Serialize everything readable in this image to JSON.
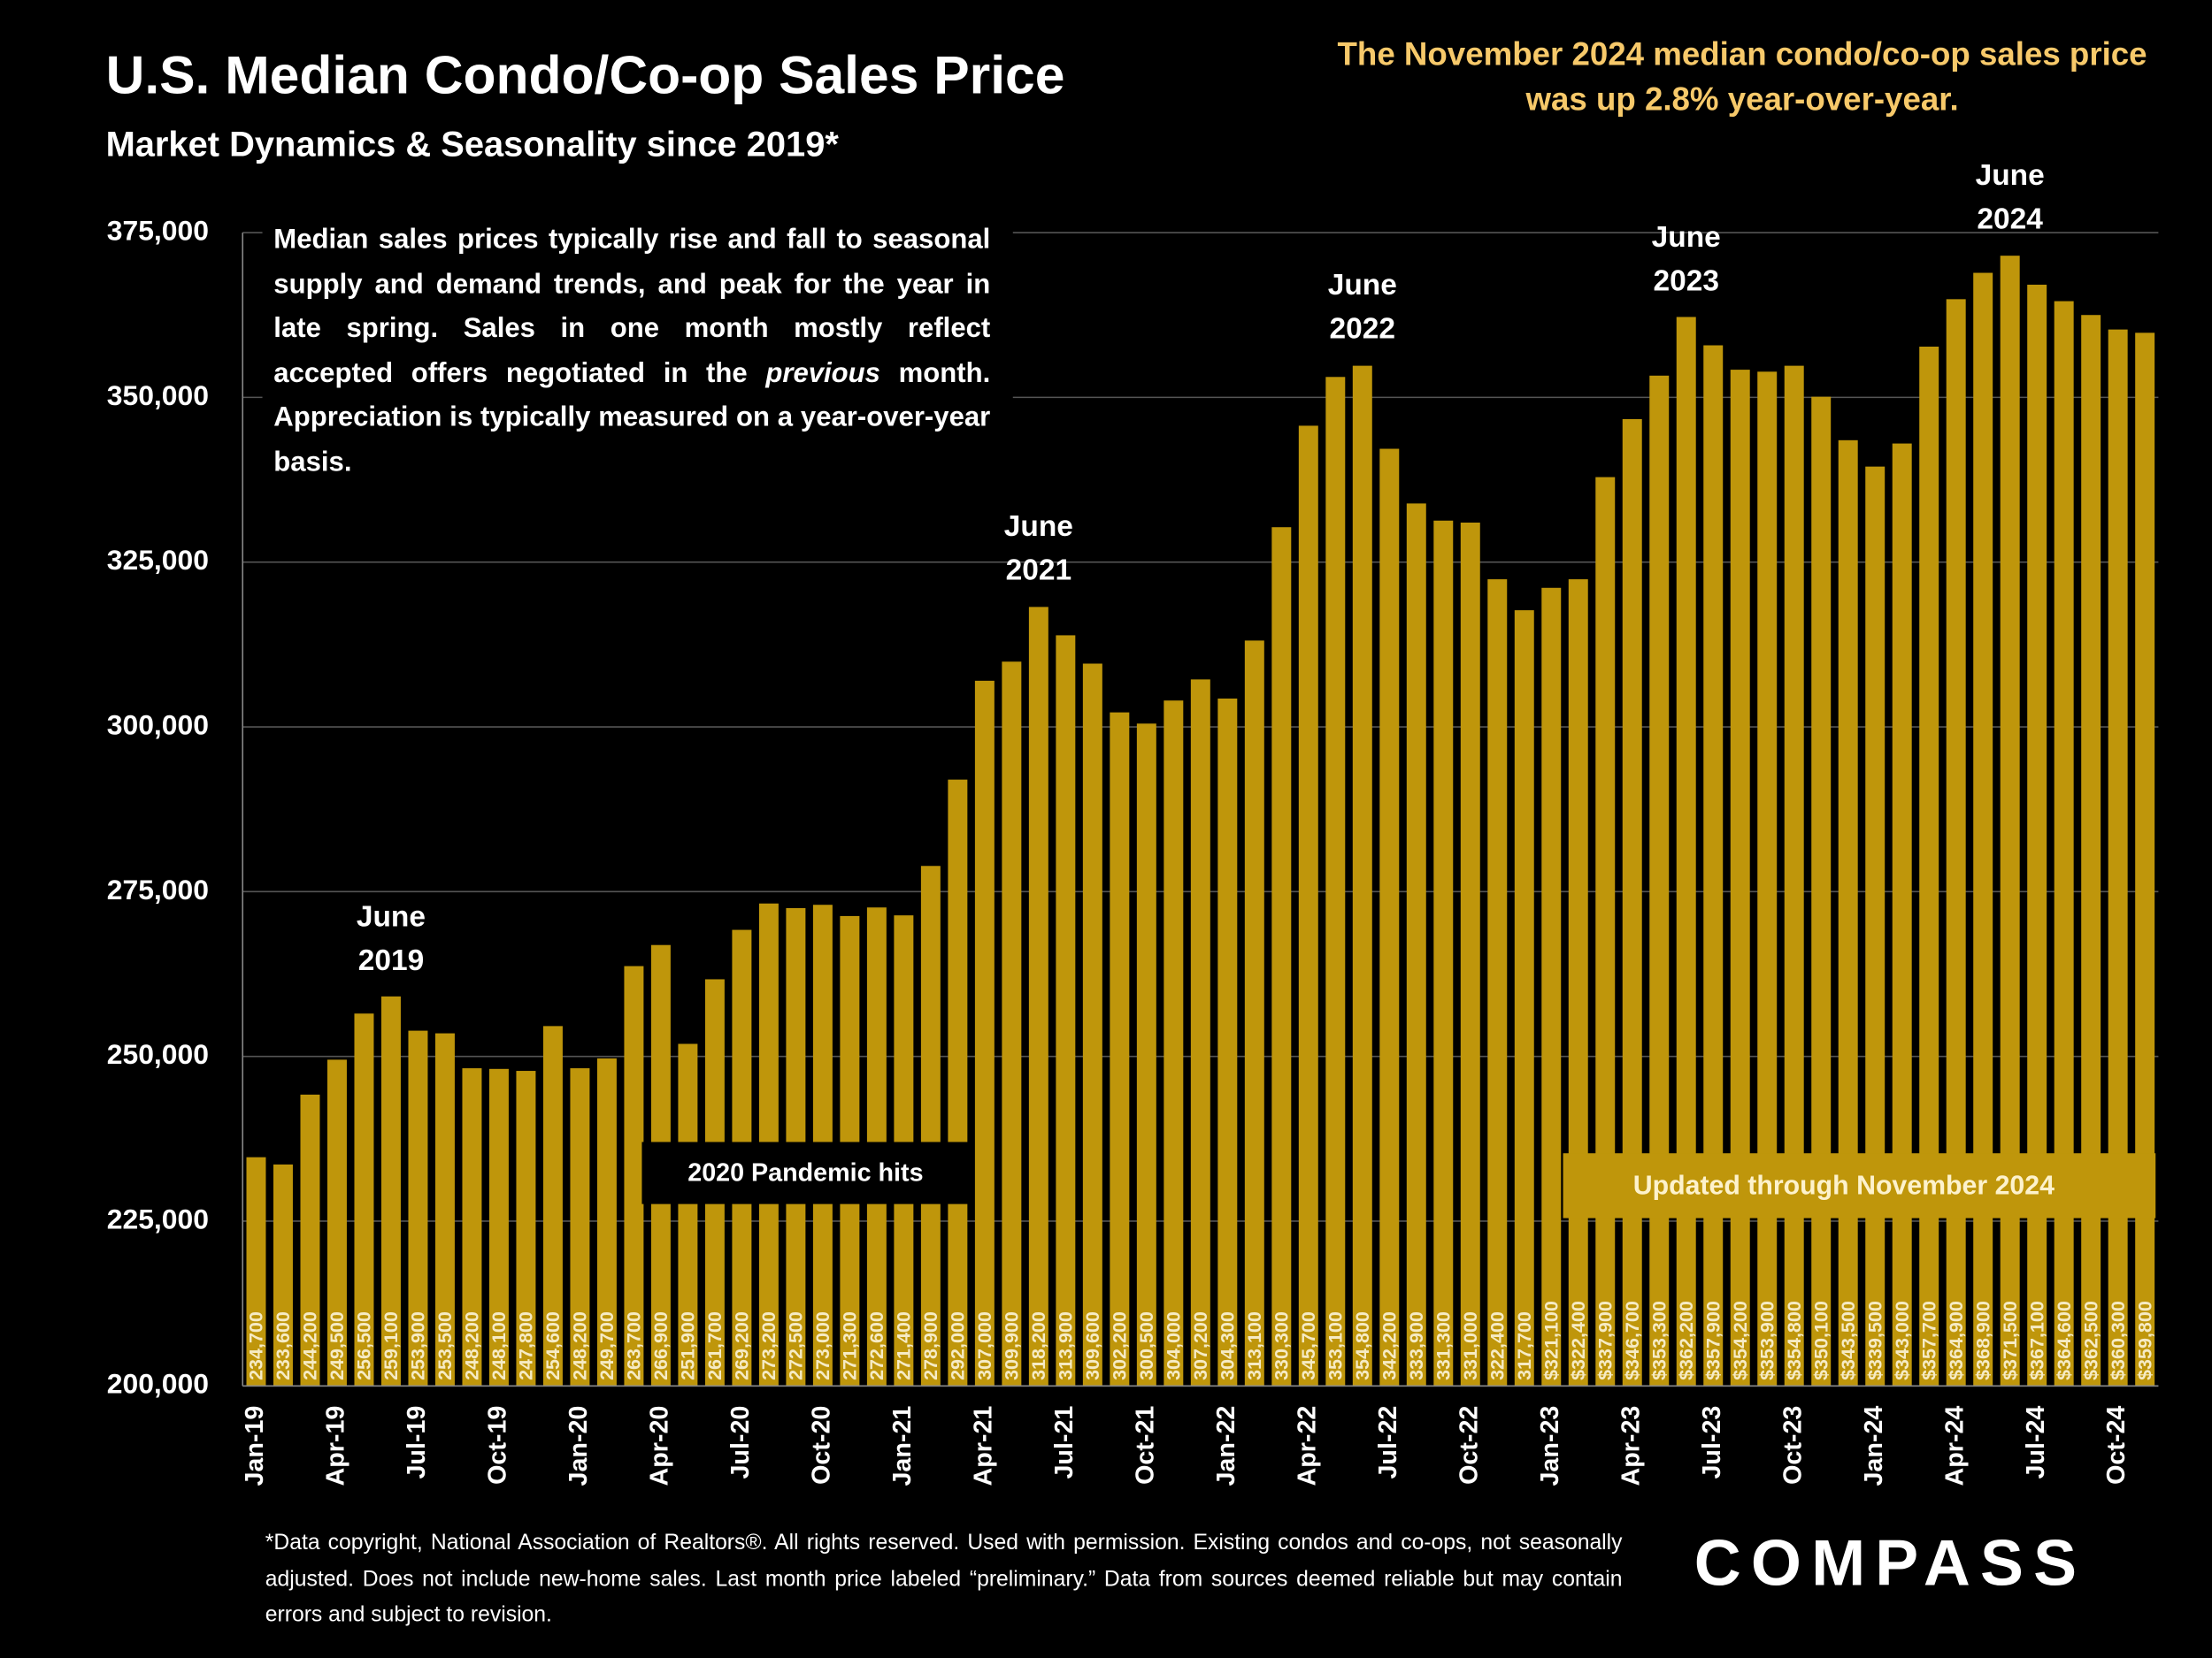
{
  "chart_data": {
    "type": "bar",
    "title": "U.S. Median Condo/Co-op Sales Price",
    "subtitle": "Market Dynamics & Seasonality since 2019*",
    "headline": "The November 2024 median condo/co-op sales price was up 2.8% year-over-year.",
    "description": [
      "Median sales prices typically rise and fall to seasonal supply and demand trends, and peak for the year in late spring. Sales in one month mostly reflect accepted offers negotiated in the ",
      "previous",
      " month. Appreciation is typically measured on a year-over-year basis."
    ],
    "annotations": [
      "June 2019",
      "June 2021",
      "June 2022",
      "June 2023",
      "June 2024"
    ],
    "event_label": "2020 Pandemic hits",
    "update_label": "Updated through November 2024",
    "footnote": "*Data copyright, National Association of Realtors®. All rights reserved. Used with permission. Existing condos and co-ops, not seasonally adjusted. Does not include new-home sales. Last month price labeled “preliminary.” Data from sources deemed reliable but may contain errors and subject to revision.",
    "logo": "COMPASS",
    "categories": [
      "Jan-19",
      null,
      null,
      "Apr-19",
      null,
      null,
      "Jul-19",
      null,
      null,
      "Oct-19",
      null,
      null,
      "Jan-20",
      null,
      null,
      "Apr-20",
      null,
      null,
      "Jul-20",
      null,
      null,
      "Oct-20",
      null,
      null,
      "Jan-21",
      null,
      null,
      "Apr-21",
      null,
      null,
      "Jul-21",
      null,
      null,
      "Oct-21",
      null,
      null,
      "Jan-22",
      null,
      null,
      "Apr-22",
      null,
      null,
      "Jul-22",
      null,
      null,
      "Oct-22",
      null,
      null,
      "Jan-23",
      null,
      null,
      "Apr-23",
      null,
      null,
      "Jul-23",
      null,
      null,
      "Oct-23",
      null,
      null,
      "Jan-24",
      null,
      null,
      "Apr-24",
      null,
      null,
      "Jul-24",
      null,
      null,
      "Oct-24",
      null
    ],
    "values": [
      234700,
      233600,
      244200,
      249500,
      256500,
      259100,
      253900,
      253500,
      248200,
      248100,
      247800,
      254600,
      248200,
      249700,
      263700,
      266900,
      251900,
      261700,
      269200,
      273200,
      272500,
      273000,
      271300,
      272600,
      271400,
      278900,
      292000,
      307000,
      309900,
      318200,
      313900,
      309600,
      302200,
      300500,
      304000,
      307200,
      304300,
      313100,
      330300,
      345700,
      353100,
      354800,
      342200,
      333900,
      331300,
      331000,
      322400,
      317700,
      321100,
      322400,
      337900,
      346700,
      353300,
      362200,
      357900,
      354200,
      353900,
      354800,
      350100,
      343500,
      339500,
      343000,
      357700,
      364900,
      368900,
      371500,
      367100,
      364600,
      362500,
      360300,
      359800
    ],
    "value_labels": [
      "234,700",
      "233,600",
      "244,200",
      "249,500",
      "256,500",
      "259,100",
      "253,900",
      "253,500",
      "248,200",
      "248,100",
      "247,800",
      "254,600",
      "248,200",
      "249,700",
      "263,700",
      "266,900",
      "251,900",
      "261,700",
      "269,200",
      "273,200",
      "272,500",
      "273,000",
      "271,300",
      "272,600",
      "271,400",
      "278,900",
      "292,000",
      "307,000",
      "309,900",
      "318,200",
      "313,900",
      "309,600",
      "302,200",
      "300,500",
      "304,000",
      "307,200",
      "304,300",
      "313,100",
      "330,300",
      "345,700",
      "353,100",
      "354,800",
      "342,200",
      "333,900",
      "331,300",
      "331,000",
      "322,400",
      "317,700",
      "$321,100",
      "$322,400",
      "$337,900",
      "$346,700",
      "$353,300",
      "$362,200",
      "$357,900",
      "$354,200",
      "$353,900",
      "$354,800",
      "$350,100",
      "$343,500",
      "$339,500",
      "$343,000",
      "$357,700",
      "$364,900",
      "$368,900",
      "$371,500",
      "$367,100",
      "$364,600",
      "$362,500",
      "$360,300",
      "$359,800"
    ],
    "color": "#bf960b",
    "ylim": [
      200000,
      375000
    ],
    "yticks": [
      {
        "value": 200000,
        "label": "200,000"
      },
      {
        "value": 225000,
        "label": "225,000"
      },
      {
        "value": 250000,
        "label": "250,000"
      },
      {
        "value": 275000,
        "label": "275,000"
      },
      {
        "value": 300000,
        "label": "300,000"
      },
      {
        "value": 325000,
        "label": "325,000"
      },
      {
        "value": 350000,
        "label": "350,000"
      },
      {
        "value": 375000,
        "label": "375,000"
      }
    ],
    "grid": true
  }
}
